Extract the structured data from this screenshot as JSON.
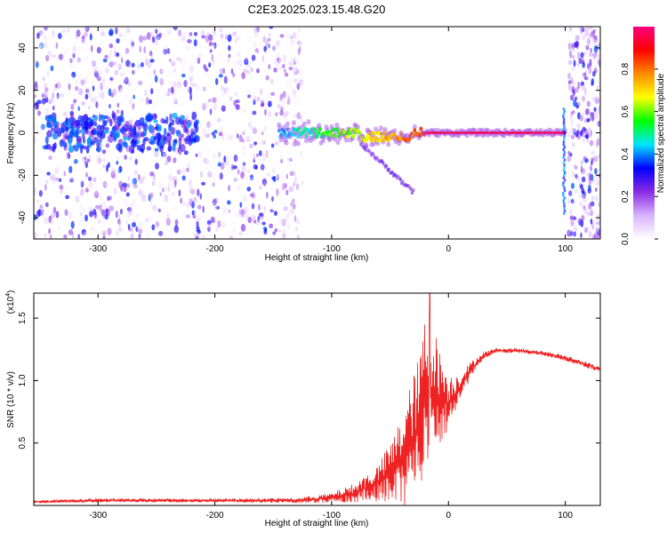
{
  "title": "C2E3.2025.023.15.48.G20",
  "chart_data": [
    {
      "type": "heatmap",
      "name": "spectrogram",
      "xlabel": "Height of straight line (km)",
      "ylabel": "Frequency (Hz)",
      "xlim": [
        -355,
        130
      ],
      "ylim": [
        -50,
        50
      ],
      "x_ticks": [
        -300,
        -200,
        -100,
        0,
        100
      ],
      "x_tick_labels": [
        "-300",
        "-200",
        "-100",
        "0",
        "100"
      ],
      "y_ticks": [
        -40,
        -20,
        0,
        20,
        40
      ],
      "y_tick_labels": [
        "-40",
        "-20",
        "0",
        "20",
        "40"
      ],
      "colorbar": {
        "label": "Normalized spectral amplitude",
        "range": [
          0,
          1
        ],
        "ticks": [
          0.0,
          0.2,
          0.4,
          0.6,
          0.8
        ],
        "tick_labels": [
          "0.0",
          "0.2",
          "0.4",
          "0.6",
          "0.8"
        ],
        "colors": [
          "#ffffff",
          "#d9b3ff",
          "#8a2be2",
          "#0000ff",
          "#00e5ff",
          "#00ff00",
          "#ffff00",
          "#ff8c00",
          "#ff0000",
          "#ff0080"
        ]
      },
      "features": [
        {
          "name": "broadband noise",
          "x_range": [
            -355,
            -125
          ],
          "freq_range": [
            -50,
            50
          ],
          "amplitude": 0.1
        },
        {
          "name": "noise band near 0 Hz",
          "x_range": [
            -345,
            -225
          ],
          "freq_range": [
            -8,
            8
          ],
          "amplitude": 0.25
        },
        {
          "name": "signal trace",
          "x_range": [
            -145,
            100
          ],
          "center_freq": 0,
          "amplitude": 0.95
        },
        {
          "name": "descending branch",
          "x_range": [
            -75,
            -30
          ],
          "freq_range": [
            -28,
            -5
          ],
          "amplitude": 0.15
        },
        {
          "name": "cutoff",
          "x": 100,
          "freq_range": [
            -38,
            12
          ],
          "amplitude": 0.4
        },
        {
          "name": "noise beyond cutoff",
          "x_range": [
            103,
            130
          ],
          "freq_range": [
            -50,
            50
          ],
          "amplitude": 0.15
        }
      ]
    },
    {
      "type": "line",
      "name": "snr",
      "xlabel": "Height of straight line (km)",
      "ylabel": "SNR (10 * v/v)",
      "scale_label": "(x10",
      "scale_exponent": "4",
      "scale_close": ")",
      "xlim": [
        -355,
        130
      ],
      "ylim": [
        0,
        1.7
      ],
      "x_ticks": [
        -300,
        -200,
        -100,
        0,
        100
      ],
      "x_tick_labels": [
        "-300",
        "-200",
        "-100",
        "0",
        "100"
      ],
      "y_ticks": [
        0.5,
        1.0,
        1.5
      ],
      "y_tick_labels": [
        "0.5",
        "1.0",
        "1.5"
      ],
      "color": "#ee2222",
      "series": [
        {
          "name": "SNR",
          "x": [
            -355,
            -300,
            -200,
            -130,
            -100,
            -80,
            -60,
            -45,
            -35,
            -25,
            -20,
            -15,
            -10,
            -5,
            0,
            10,
            20,
            30,
            40,
            60,
            80,
            100,
            120,
            130
          ],
          "y": [
            0.03,
            0.04,
            0.04,
            0.04,
            0.06,
            0.1,
            0.18,
            0.3,
            0.45,
            0.65,
            0.85,
            0.95,
            0.9,
            0.85,
            0.82,
            0.95,
            1.1,
            1.2,
            1.24,
            1.24,
            1.22,
            1.18,
            1.12,
            1.09
          ],
          "noise": [
            0.01,
            0.015,
            0.015,
            0.02,
            0.04,
            0.08,
            0.15,
            0.3,
            0.45,
            0.55,
            0.7,
            0.55,
            0.45,
            0.35,
            0.22,
            0.12,
            0.06,
            0.03,
            0.02,
            0.02,
            0.02,
            0.025,
            0.025,
            0.025
          ],
          "peak": {
            "x": -16,
            "y": 1.7
          }
        }
      ]
    }
  ]
}
